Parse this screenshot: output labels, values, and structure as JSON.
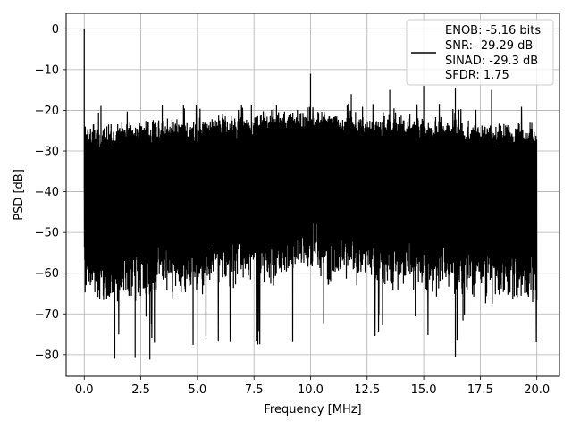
{
  "chart_data": {
    "type": "line",
    "xlabel": "Frequency [MHz]",
    "ylabel": "PSD [dB]",
    "xlim": [
      -0.8,
      21.0
    ],
    "ylim": [
      -85.3,
      3.8
    ],
    "xticks": [
      0.0,
      2.5,
      5.0,
      7.5,
      10.0,
      12.5,
      15.0,
      17.5,
      20.0
    ],
    "xtick_labels": [
      "0.0",
      "2.5",
      "5.0",
      "7.5",
      "10.0",
      "12.5",
      "15.0",
      "17.5",
      "20.0"
    ],
    "yticks": [
      0,
      -10,
      -20,
      -30,
      -40,
      -50,
      -60,
      -70,
      -80
    ],
    "ytick_labels": [
      "0",
      "−10",
      "−20",
      "−30",
      "−40",
      "−50",
      "−60",
      "−70",
      "−80"
    ],
    "grid": true,
    "legend_position": "top-right",
    "series": [
      {
        "color": "#000000",
        "x_range": [
          0.0,
          20.0
        ],
        "noise_floor_typical_db": [
          -60,
          -22
        ],
        "extremes_db": [
          -81.2,
          0.0
        ],
        "peaks": [
          {
            "x": 0.0,
            "y": 0.0
          },
          {
            "x": 10.0,
            "y": -11.0
          },
          {
            "x": 11.8,
            "y": -16.0
          },
          {
            "x": 13.5,
            "y": -15.0
          },
          {
            "x": 15.0,
            "y": -14.0
          },
          {
            "x": 16.4,
            "y": -14.5
          },
          {
            "x": 18.0,
            "y": -15.0
          }
        ],
        "dips": [
          {
            "x": 1.35,
            "y": -81.0
          },
          {
            "x": 2.25,
            "y": -80.8
          },
          {
            "x": 2.9,
            "y": -81.2
          },
          {
            "x": 16.4,
            "y": -80.5
          }
        ]
      }
    ],
    "legend": {
      "lines": [
        "ENOB: -5.16 bits",
        "SNR: -29.29 dB",
        "SINAD: -29.3 dB",
        "SFDR: 1.75"
      ],
      "color": "#000000"
    }
  }
}
